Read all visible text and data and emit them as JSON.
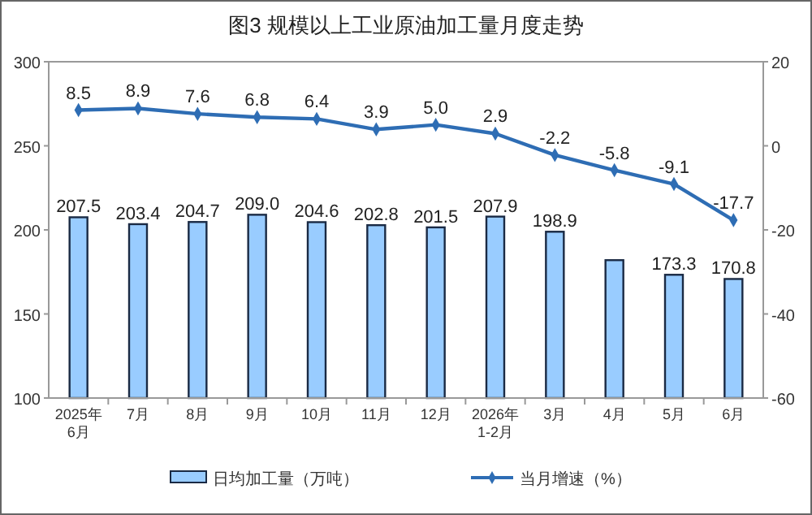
{
  "chart_data": {
    "type": "bar",
    "title": "图3  规模以上工业原油加工量月度走势",
    "categories": [
      "2025年\n6月",
      "7月",
      "8月",
      "9月",
      "10月",
      "11月",
      "12月",
      "2026年\n1-2月",
      "3月",
      "4月",
      "5月",
      "6月"
    ],
    "series": [
      {
        "name": "日均加工量（万吨）",
        "color": "#99ccff",
        "values": [
          207.5,
          203.4,
          204.7,
          209.0,
          204.6,
          202.8,
          201.5,
          207.9,
          198.9,
          182,
          173.3,
          170.8
        ],
        "value_labels": [
          "207.5",
          "203.4",
          "204.7",
          "209.0",
          "204.6",
          "202.8",
          "201.5",
          "207.9",
          "198.9",
          null,
          "173.3",
          "170.8"
        ]
      },
      {
        "name": "当月增速（%）",
        "type": "line",
        "axis": "y2",
        "color": "#2e6db4",
        "marker": "diamond",
        "values": [
          8.5,
          8.9,
          7.6,
          6.8,
          6.4,
          3.9,
          5.0,
          2.9,
          -2.2,
          -5.8,
          -9.1,
          -17.7
        ],
        "value_labels": [
          "8.5",
          "8.9",
          "7.6",
          "6.8",
          "6.4",
          "3.9",
          "5.0",
          "2.9",
          "-2.2",
          "-5.8",
          "-9.1",
          "-17.7"
        ]
      }
    ],
    "ylim": [
      100,
      300
    ],
    "yticks": [
      100,
      150,
      200,
      250,
      300
    ],
    "y2lim": [
      -60,
      20
    ],
    "y2ticks": [
      -60,
      -40,
      -20,
      0,
      20
    ],
    "grid": false,
    "legend": "bottom"
  }
}
